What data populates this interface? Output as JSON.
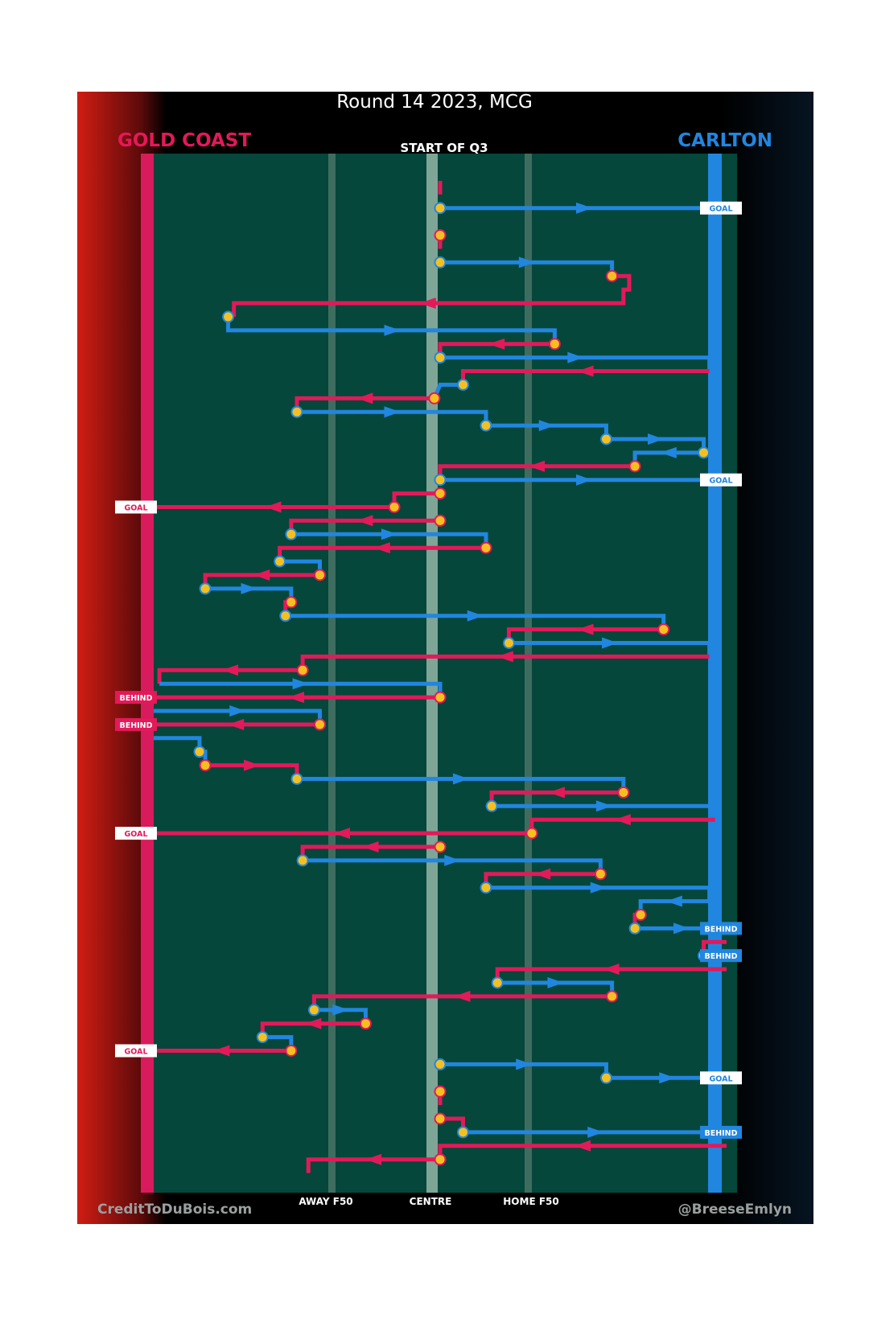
{
  "header": {
    "title": "Round 14 2023, MCG",
    "team_left": "GOLD COAST",
    "team_right": "CARLTON",
    "period": "START OF Q3"
  },
  "zones": {
    "away": "AWAY F50",
    "centre": "CENTRE",
    "home": "HOME F50"
  },
  "footer": {
    "left": "CreditToDuBois.com",
    "right": "@BreeseEmlyn"
  },
  "colors": {
    "gold_coast": "#e3195a",
    "carlton": "#2186e0",
    "turnover": "#f4c020",
    "field": "#05473a"
  },
  "chart_data": {
    "type": "line",
    "title": "Round 14 2023, MCG",
    "subtitle": "START OF Q3",
    "x_scale": "field position, 0 = Gold Coast goal line, 100 = Carlton goal line",
    "x_ticks": [
      {
        "label": "AWAY F50",
        "x": 31
      },
      {
        "label": "CENTRE",
        "x": 50
      },
      {
        "label": "HOME F50",
        "x": 69
      }
    ],
    "teams": [
      {
        "name": "GOLD COAST",
        "color": "#e3195a",
        "attacks": "left"
      },
      {
        "name": "CARLTON",
        "color": "#2186e0",
        "attacks": "right"
      }
    ],
    "possession_chains": [
      {
        "team": "GOLD COAST",
        "path": [
          [
            50,
            1
          ],
          [
            50,
            2
          ]
        ]
      },
      {
        "team": "CARLTON",
        "path": [
          [
            50,
            3
          ],
          [
            100,
            3
          ]
        ],
        "result": "GOAL"
      },
      {
        "team": "GOLD COAST",
        "path": [
          [
            50,
            5
          ],
          [
            50,
            6
          ]
        ]
      },
      {
        "team": "CARLTON",
        "path": [
          [
            50,
            7
          ],
          [
            80,
            7
          ],
          [
            80,
            8
          ]
        ]
      },
      {
        "team": "GOLD COAST",
        "path": [
          [
            80,
            8
          ],
          [
            83,
            8
          ],
          [
            83,
            9
          ],
          [
            82,
            9
          ],
          [
            82,
            10
          ],
          [
            14,
            10
          ],
          [
            14,
            11
          ]
        ]
      },
      {
        "team": "CARLTON",
        "path": [
          [
            13,
            11
          ],
          [
            13,
            12
          ],
          [
            70,
            12
          ],
          [
            70,
            13
          ]
        ]
      },
      {
        "team": "GOLD COAST",
        "path": [
          [
            70,
            13
          ],
          [
            50,
            13
          ],
          [
            50,
            14
          ]
        ]
      },
      {
        "team": "CARLTON",
        "path": [
          [
            50,
            14
          ],
          [
            97,
            14
          ],
          [
            97,
            15
          ]
        ]
      },
      {
        "team": "GOLD COAST",
        "path": [
          [
            97,
            15
          ],
          [
            54,
            15
          ],
          [
            54,
            16
          ]
        ]
      },
      {
        "team": "CARLTON",
        "path": [
          [
            54,
            16
          ],
          [
            50,
            16
          ],
          [
            49,
            17
          ]
        ]
      },
      {
        "team": "GOLD COAST",
        "path": [
          [
            49,
            17
          ],
          [
            25,
            17
          ],
          [
            25,
            18
          ]
        ]
      },
      {
        "team": "CARLTON",
        "path": [
          [
            25,
            18
          ],
          [
            58,
            18
          ],
          [
            58,
            19
          ]
        ]
      },
      {
        "team": "CARLTON",
        "path": [
          [
            58,
            19
          ],
          [
            79,
            19
          ],
          [
            79,
            20
          ]
        ]
      },
      {
        "team": "CARLTON",
        "path": [
          [
            79,
            20
          ],
          [
            96,
            20
          ],
          [
            96,
            21
          ]
        ]
      },
      {
        "team": "CARLTON",
        "path": [
          [
            96,
            21
          ],
          [
            84,
            21
          ],
          [
            84,
            22
          ]
        ]
      },
      {
        "team": "GOLD COAST",
        "path": [
          [
            84,
            22
          ],
          [
            50,
            22
          ],
          [
            50,
            23
          ]
        ]
      },
      {
        "team": "CARLTON",
        "path": [
          [
            50,
            23
          ],
          [
            100,
            23
          ]
        ],
        "result": "GOAL"
      },
      {
        "team": "GOLD COAST",
        "path": [
          [
            50,
            24
          ],
          [
            42,
            24
          ],
          [
            42,
            25
          ]
        ]
      },
      {
        "team": "GOLD COAST",
        "path": [
          [
            42,
            25
          ],
          [
            0,
            25
          ]
        ],
        "result": "GOAL"
      },
      {
        "team": "GOLD COAST",
        "path": [
          [
            50,
            26
          ],
          [
            24,
            26
          ],
          [
            24,
            27
          ]
        ]
      },
      {
        "team": "CARLTON",
        "path": [
          [
            24,
            27
          ],
          [
            58,
            27
          ],
          [
            58,
            28
          ]
        ]
      },
      {
        "team": "GOLD COAST",
        "path": [
          [
            58,
            28
          ],
          [
            22,
            28
          ],
          [
            22,
            29
          ]
        ]
      },
      {
        "team": "CARLTON",
        "path": [
          [
            22,
            29
          ],
          [
            29,
            29
          ],
          [
            29,
            30
          ]
        ]
      },
      {
        "team": "GOLD COAST",
        "path": [
          [
            29,
            30
          ],
          [
            9,
            30
          ],
          [
            9,
            31
          ]
        ]
      },
      {
        "team": "CARLTON",
        "path": [
          [
            9,
            31
          ],
          [
            24,
            31
          ],
          [
            24,
            32
          ]
        ]
      },
      {
        "team": "GOLD COAST",
        "path": [
          [
            24,
            32
          ],
          [
            23,
            32
          ],
          [
            23,
            33
          ]
        ]
      },
      {
        "team": "CARLTON",
        "path": [
          [
            23,
            33
          ],
          [
            89,
            33
          ],
          [
            89,
            34
          ]
        ]
      },
      {
        "team": "GOLD COAST",
        "path": [
          [
            89,
            34
          ],
          [
            62,
            34
          ],
          [
            62,
            35
          ]
        ]
      },
      {
        "team": "CARLTON",
        "path": [
          [
            62,
            35
          ],
          [
            97,
            35
          ],
          [
            97,
            36
          ]
        ]
      },
      {
        "team": "GOLD COAST",
        "path": [
          [
            97,
            36
          ],
          [
            26,
            36
          ],
          [
            26,
            37
          ]
        ]
      },
      {
        "team": "GOLD COAST",
        "path": [
          [
            26,
            37
          ],
          [
            1,
            37
          ],
          [
            1,
            38
          ]
        ]
      },
      {
        "team": "CARLTON",
        "path": [
          [
            1,
            38
          ],
          [
            50,
            38
          ],
          [
            50,
            39
          ]
        ]
      },
      {
        "team": "GOLD COAST",
        "path": [
          [
            50,
            39
          ],
          [
            0,
            39
          ]
        ],
        "result": "BEHIND"
      },
      {
        "team": "CARLTON",
        "path": [
          [
            0,
            40
          ],
          [
            29,
            40
          ],
          [
            29,
            41
          ]
        ]
      },
      {
        "team": "GOLD COAST",
        "path": [
          [
            29,
            41
          ],
          [
            0,
            41
          ]
        ],
        "result": "BEHIND"
      },
      {
        "team": "CARLTON",
        "path": [
          [
            0,
            42
          ],
          [
            8,
            42
          ],
          [
            8,
            43
          ]
        ]
      },
      {
        "team": "CARLTON",
        "path": [
          [
            8,
            43
          ],
          [
            9,
            43
          ],
          [
            9,
            44
          ]
        ]
      },
      {
        "team": "GOLD COAST",
        "path": [
          [
            9,
            44
          ],
          [
            25,
            44
          ],
          [
            25,
            45
          ]
        ]
      },
      {
        "team": "CARLTON",
        "path": [
          [
            25,
            45
          ],
          [
            82,
            45
          ],
          [
            82,
            46
          ]
        ]
      },
      {
        "team": "GOLD COAST",
        "path": [
          [
            82,
            46
          ],
          [
            59,
            46
          ],
          [
            59,
            47
          ]
        ]
      },
      {
        "team": "CARLTON",
        "path": [
          [
            59,
            47
          ],
          [
            98,
            47
          ],
          [
            98,
            48
          ]
        ]
      },
      {
        "team": "GOLD COAST",
        "path": [
          [
            98,
            48
          ],
          [
            66,
            48
          ],
          [
            66,
            49
          ]
        ]
      },
      {
        "team": "GOLD COAST",
        "path": [
          [
            66,
            49
          ],
          [
            0,
            49
          ]
        ],
        "result": "GOAL"
      },
      {
        "team": "GOLD COAST",
        "path": [
          [
            50,
            50
          ],
          [
            26,
            50
          ],
          [
            26,
            51
          ]
        ]
      },
      {
        "team": "CARLTON",
        "path": [
          [
            26,
            51
          ],
          [
            78,
            51
          ],
          [
            78,
            52
          ]
        ]
      },
      {
        "team": "GOLD COAST",
        "path": [
          [
            78,
            52
          ],
          [
            58,
            52
          ],
          [
            58,
            53
          ]
        ]
      },
      {
        "team": "CARLTON",
        "path": [
          [
            58,
            53
          ],
          [
            97,
            53
          ],
          [
            97,
            54
          ]
        ]
      },
      {
        "team": "CARLTON",
        "path": [
          [
            97,
            54
          ],
          [
            85,
            54
          ],
          [
            85,
            55
          ]
        ]
      },
      {
        "team": "GOLD COAST",
        "path": [
          [
            85,
            55
          ],
          [
            84,
            55
          ],
          [
            84,
            56
          ]
        ]
      },
      {
        "team": "CARLTON",
        "path": [
          [
            84,
            56
          ],
          [
            100,
            56
          ]
        ],
        "result": "BEHIND"
      },
      {
        "team": "GOLD COAST",
        "path": [
          [
            100,
            57
          ],
          [
            96,
            57
          ],
          [
            96,
            58
          ]
        ]
      },
      {
        "team": "CARLTON",
        "path": [
          [
            96,
            58
          ],
          [
            100,
            58
          ]
        ],
        "result": "BEHIND"
      },
      {
        "team": "GOLD COAST",
        "path": [
          [
            100,
            59
          ],
          [
            60,
            59
          ],
          [
            60,
            60
          ]
        ]
      },
      {
        "team": "CARLTON",
        "path": [
          [
            60,
            60
          ],
          [
            80,
            60
          ],
          [
            80,
            61
          ]
        ]
      },
      {
        "team": "GOLD COAST",
        "path": [
          [
            80,
            61
          ],
          [
            28,
            61
          ],
          [
            28,
            62
          ]
        ]
      },
      {
        "team": "CARLTON",
        "path": [
          [
            28,
            62
          ],
          [
            37,
            62
          ],
          [
            37,
            63
          ]
        ]
      },
      {
        "team": "GOLD COAST",
        "path": [
          [
            37,
            63
          ],
          [
            19,
            63
          ],
          [
            19,
            64
          ]
        ]
      },
      {
        "team": "CARLTON",
        "path": [
          [
            19,
            64
          ],
          [
            24,
            64
          ],
          [
            24,
            65
          ]
        ]
      },
      {
        "team": "GOLD COAST",
        "path": [
          [
            24,
            65
          ],
          [
            0,
            65
          ]
        ],
        "result": "GOAL"
      },
      {
        "team": "CARLTON",
        "path": [
          [
            50,
            66
          ],
          [
            79,
            66
          ],
          [
            79,
            67
          ]
        ]
      },
      {
        "team": "CARLTON",
        "path": [
          [
            79,
            67
          ],
          [
            100,
            67
          ]
        ],
        "result": "GOAL"
      },
      {
        "team": "GOLD COAST",
        "path": [
          [
            50,
            68
          ],
          [
            50,
            69
          ]
        ]
      },
      {
        "team": "GOLD COAST",
        "path": [
          [
            50,
            70
          ],
          [
            54,
            70
          ],
          [
            54,
            71
          ]
        ]
      },
      {
        "team": "CARLTON",
        "path": [
          [
            54,
            71
          ],
          [
            100,
            71
          ]
        ],
        "result": "BEHIND"
      },
      {
        "team": "GOLD COAST",
        "path": [
          [
            100,
            72
          ],
          [
            50,
            72
          ],
          [
            50,
            73
          ]
        ]
      },
      {
        "team": "GOLD COAST",
        "path": [
          [
            50,
            73
          ],
          [
            27,
            73
          ],
          [
            27,
            74
          ]
        ]
      }
    ]
  }
}
